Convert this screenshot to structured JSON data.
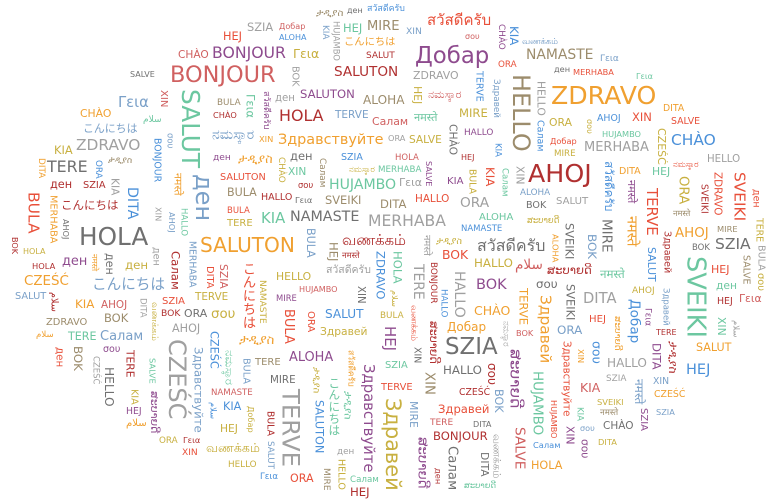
{
  "words": [
    "HELLO",
    "AHOJ",
    "SALUT",
    "HOLA",
    "TERVE",
    "ZDRAVO",
    "Здравей",
    "Добар",
    "ден",
    "BONJOUR",
    "CZEŚĆ",
    "SZIA",
    "SALUTON",
    "SVEIKI",
    "ALOHA",
    "NAMASTE",
    "नमस्ते",
    "สวัสดีครับ",
    "こんにちは",
    "ታዲያስ",
    "ສະບາຍດີ",
    "வணக்கம்",
    "Γεια",
    "σου",
    "Здравствуйте",
    "Салам",
    "MERHABA",
    "HUJAMBO",
    "KIA",
    "ORA",
    "BULA",
    "MIRE",
    "DITA",
    "HEJ",
    "HALLO",
    "TERE",
    "BOK",
    "CHÀO",
    "XIN",
    "SALVE",
    "سلام",
    "ನಮಸ್ಕಾರ"
  ],
  "palette": [
    "#e8503a",
    "#4a90d9",
    "#8e4b8e",
    "#a0a0a0",
    "#c8b040",
    "#f0a030",
    "#6cc7a0",
    "#9c8c6c",
    "#7aa0c8",
    "#b03030",
    "#707070",
    "#d06060"
  ]
}
